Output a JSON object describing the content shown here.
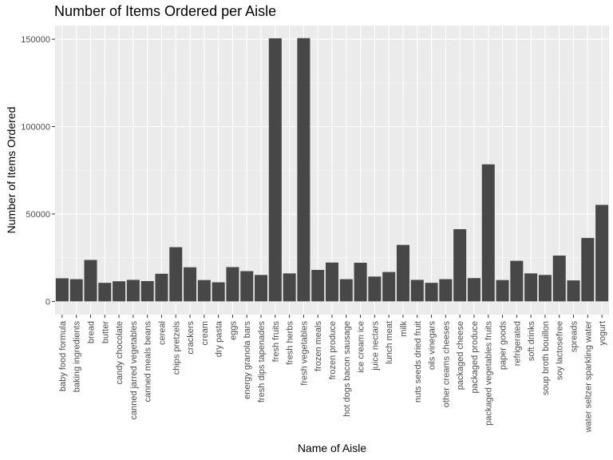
{
  "chart_data": {
    "type": "bar",
    "title": "Number of Items Ordered per Aisle",
    "xlabel": "Name of Aisle",
    "ylabel": "Number of Items Ordered",
    "ylim": [
      -7600,
      157800
    ],
    "yticks": [
      0,
      50000,
      100000,
      150000
    ],
    "ytick_labels": [
      "0",
      "50000",
      "100000",
      "150000"
    ],
    "grid": true,
    "colors": {
      "bar": "#474747",
      "panel": "#ebebeb",
      "grid_major": "#ffffff",
      "grid_minor": "#f5f5f5"
    },
    "categories": [
      "baby food formula",
      "baking ingredients",
      "bread",
      "butter",
      "candy chocolate",
      "canned jarred vegetables",
      "canned meals beans",
      "cereal",
      "chips pretzels",
      "crackers",
      "cream",
      "dry pasta",
      "eggs",
      "energy granola bars",
      "fresh dips tapenades",
      "fresh fruits",
      "fresh herbs",
      "fresh vegetables",
      "frozen meals",
      "frozen produce",
      "hot dogs bacon sausage",
      "ice cream ice",
      "juice nectars",
      "lunch meat",
      "milk",
      "nuts seeds dried fruit",
      "oils vinegars",
      "other creams cheeses",
      "packaged cheese",
      "packaged produce",
      "packaged vegetables fruits",
      "paper goods",
      "refrigerated",
      "soft drinks",
      "soup broth bouillon",
      "soy lactosefree",
      "spreads",
      "water seltzer sparkling water",
      "yogurt"
    ],
    "values": [
      13200,
      12700,
      23700,
      10600,
      11500,
      12300,
      11600,
      15800,
      31000,
      19500,
      12200,
      10900,
      19600,
      17300,
      15100,
      150500,
      16000,
      150600,
      18000,
      22200,
      12700,
      22100,
      14200,
      16800,
      32300,
      12300,
      10600,
      12700,
      41300,
      13300,
      78400,
      12200,
      23200,
      16000,
      15100,
      26200,
      12000,
      36300,
      55200
    ]
  }
}
